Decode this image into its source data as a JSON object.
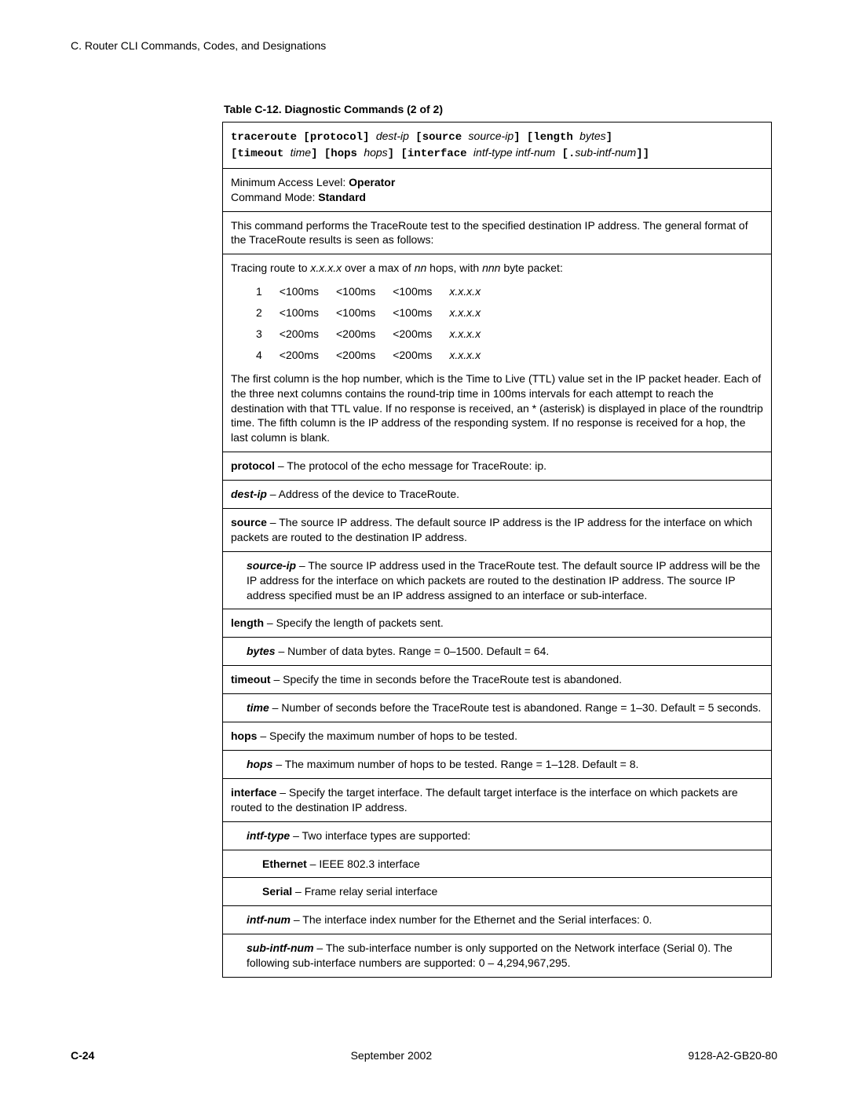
{
  "header": "C. Router CLI Commands, Codes, and Designations",
  "caption": "Table C-12.  Diagnostic Commands (2 of 2)",
  "syntax": {
    "parts": [
      {
        "t": "traceroute",
        "mono": true,
        "bold": true
      },
      {
        "t": " [",
        "mono": true,
        "bold": true
      },
      {
        "t": "protocol",
        "mono": true,
        "bold": true
      },
      {
        "t": "] ",
        "mono": true,
        "bold": true
      },
      {
        "t": "dest-ip",
        "ital": true
      },
      {
        "t": " [",
        "mono": true,
        "bold": true
      },
      {
        "t": "source",
        "mono": true,
        "bold": true
      },
      {
        "t": " ",
        "mono": false
      },
      {
        "t": "source-ip",
        "ital": true
      },
      {
        "t": "] [",
        "mono": true,
        "bold": true
      },
      {
        "t": "length",
        "mono": true,
        "bold": true
      },
      {
        "t": " ",
        "mono": false
      },
      {
        "t": "bytes",
        "ital": true
      },
      {
        "t": "]",
        "mono": true,
        "bold": true
      },
      {
        "br": true
      },
      {
        "t": "[",
        "mono": true,
        "bold": true
      },
      {
        "t": "timeout",
        "mono": true,
        "bold": true
      },
      {
        "t": " ",
        "mono": false
      },
      {
        "t": "time",
        "ital": true
      },
      {
        "t": "] [",
        "mono": true,
        "bold": true
      },
      {
        "t": "hops",
        "mono": true,
        "bold": true
      },
      {
        "t": " ",
        "mono": false
      },
      {
        "t": "hops",
        "ital": true
      },
      {
        "t": "] [",
        "mono": true,
        "bold": true
      },
      {
        "t": "interface",
        "mono": true,
        "bold": true
      },
      {
        "t": " ",
        "mono": false
      },
      {
        "t": "intf-type intf-num",
        "ital": true
      },
      {
        "t": " [",
        "mono": true,
        "bold": true
      },
      {
        "t": ".",
        "mono": true,
        "bold": true
      },
      {
        "t": "sub-intf-num",
        "ital": true
      },
      {
        "t": "]]",
        "mono": true,
        "bold": true
      }
    ]
  },
  "access": {
    "l1a": "Minimum Access Level: ",
    "l1b": "Operator",
    "l2a": "Command Mode: ",
    "l2b": "Standard"
  },
  "desc": {
    "p1": "This command performs the TraceRoute test to the specified destination IP address. The general format of the TraceRoute results is seen as follows:",
    "tracing_a": "Tracing route to ",
    "tracing_b": "x.x.x.x",
    "tracing_c": " over a max of ",
    "tracing_d": "nn",
    "tracing_e": " hops, with ",
    "tracing_f": "nnn",
    "tracing_g": " byte packet:",
    "rows": [
      {
        "n": "1",
        "a": "<100ms",
        "b": "<100ms",
        "c": "<100ms",
        "ip": "x.x.x.x"
      },
      {
        "n": "2",
        "a": "<100ms",
        "b": "<100ms",
        "c": "<100ms",
        "ip": "x.x.x.x"
      },
      {
        "n": "3",
        "a": "<200ms",
        "b": "<200ms",
        "c": "<200ms",
        "ip": "x.x.x.x"
      },
      {
        "n": "4",
        "a": "<200ms",
        "b": "<200ms",
        "c": "<200ms",
        "ip": "x.x.x.x"
      }
    ],
    "p2": "The first column is the hop number, which is the Time to Live (TTL) value set in the IP packet header. Each of the three next columns contains the round-trip time in 100ms intervals for each attempt to reach the destination with that TTL value. If no response is received, an * (asterisk) is displayed in place of the roundtrip time. The fifth column is the IP address of the responding system. If no response is received for a hop, the last column is blank."
  },
  "params": {
    "protocol_k": "protocol",
    "protocol_t": " – The protocol of the echo message for TraceRoute: ip.",
    "destip_k": "dest-ip",
    "destip_t": " – Address of the device to TraceRoute.",
    "source_k": "source",
    "source_t": " – The source IP address. The default source IP address is the IP address for the interface on which packets are routed to the destination IP address.",
    "sourceip_k": "source-ip",
    "sourceip_t": " – The source IP address used in the TraceRoute test. The default source IP address will be the IP address for the interface on which packets are routed to the destination IP address. The source IP address specified must be an IP address assigned to an interface or sub-interface.",
    "length_k": "length",
    "length_t": " – Specify the length of packets sent.",
    "bytes_k": "bytes",
    "bytes_t": " – Number of data bytes. Range = 0–1500. Default = 64.",
    "timeout_k": "timeout",
    "timeout_t": " – Specify the time in seconds before the TraceRoute test is abandoned.",
    "time_k": "time",
    "time_t": " – Number of seconds before the TraceRoute test is abandoned. Range = 1–30. Default = 5 seconds.",
    "hops_k": "hops",
    "hops_t": " – Specify the maximum number of hops to be tested.",
    "hops2_k": "hops",
    "hops2_t": " – The maximum number of hops to be tested. Range = 1–128. Default = 8.",
    "interface_k": "interface",
    "interface_t": " – Specify the target interface. The default target interface is the interface on which packets are routed to the destination IP address.",
    "intftype_k": "intf-type",
    "intftype_t": " – Two interface types are supported:",
    "ethernet_k": "Ethernet",
    "ethernet_t": " – IEEE 802.3 interface",
    "serial_k": "Serial",
    "serial_t": " – Frame relay serial interface",
    "intfnum_k": "intf-num",
    "intfnum_t": " – The interface index number for the Ethernet and the Serial interfaces: 0.",
    "subintf_k": "sub-intf-num",
    "subintf_t": " – The sub-interface number is only supported on the Network interface (Serial 0). The following sub-interface numbers are supported: 0 – 4,294,967,295."
  },
  "footer": {
    "page": "C-24",
    "date": "September 2002",
    "docid": "9128-A2-GB20-80"
  }
}
